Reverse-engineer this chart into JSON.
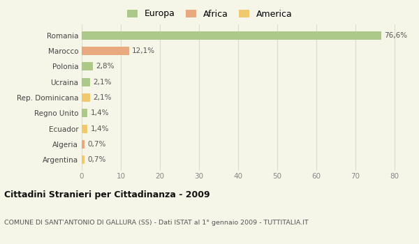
{
  "categories": [
    "Romania",
    "Marocco",
    "Polonia",
    "Ucraina",
    "Rep. Dominicana",
    "Regno Unito",
    "Ecuador",
    "Algeria",
    "Argentina"
  ],
  "values": [
    76.6,
    12.1,
    2.8,
    2.1,
    2.1,
    1.4,
    1.4,
    0.7,
    0.7
  ],
  "labels": [
    "76,6%",
    "12,1%",
    "2,8%",
    "2,1%",
    "2,1%",
    "1,4%",
    "1,4%",
    "0,7%",
    "0,7%"
  ],
  "colors": [
    "#adc98a",
    "#e8a97e",
    "#adc98a",
    "#adc98a",
    "#f0c96e",
    "#adc98a",
    "#f0c96e",
    "#e8a97e",
    "#f0c96e"
  ],
  "legend": [
    {
      "label": "Europa",
      "color": "#adc98a"
    },
    {
      "label": "Africa",
      "color": "#e8a97e"
    },
    {
      "label": "America",
      "color": "#f0c96e"
    }
  ],
  "title": "Cittadini Stranieri per Cittadinanza - 2009",
  "subtitle": "COMUNE DI SANT'ANTONIO DI GALLURA (SS) - Dati ISTAT al 1° gennaio 2009 - TUTTITALIA.IT",
  "xlim": [
    0,
    82
  ],
  "xticks": [
    0,
    10,
    20,
    30,
    40,
    50,
    60,
    70,
    80
  ],
  "background_color": "#f5f5e8",
  "grid_color": "#ddddcc"
}
